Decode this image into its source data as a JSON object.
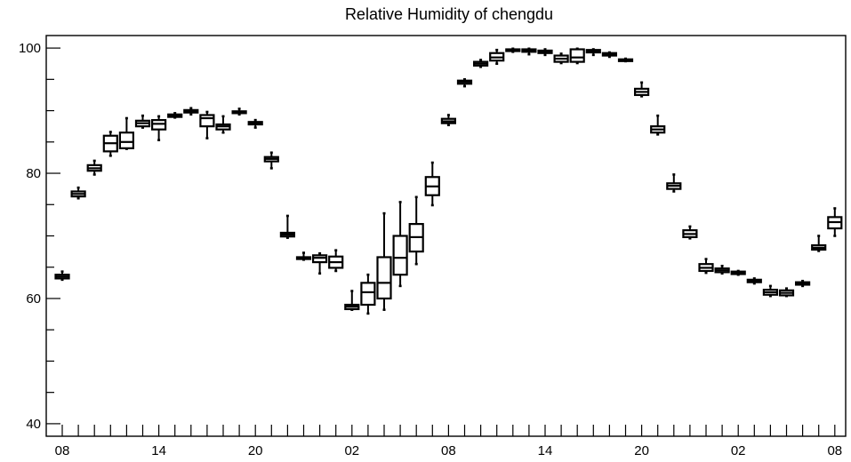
{
  "chart_data": {
    "type": "box",
    "title": "Relative Humidity of chengdu",
    "xlabel": "",
    "ylabel": "",
    "ylim": [
      38,
      102
    ],
    "grid": false,
    "y_ticks": [
      40,
      60,
      80,
      100
    ],
    "x_tick_labels": [
      "08",
      "14",
      "20",
      "02",
      "08",
      "14",
      "20",
      "02",
      "08"
    ],
    "x_label_positions": [
      0,
      6,
      12,
      18,
      24,
      30,
      36,
      42,
      48
    ],
    "series": [
      {
        "x": 0,
        "min": 63.0,
        "q1": 63.2,
        "median": 63.5,
        "q3": 63.8,
        "max": 64.3
      },
      {
        "x": 1,
        "min": 76.0,
        "q1": 76.3,
        "median": 76.7,
        "q3": 77.1,
        "max": 77.7
      },
      {
        "x": 2,
        "min": 79.8,
        "q1": 80.4,
        "median": 80.8,
        "q3": 81.3,
        "max": 82.0
      },
      {
        "x": 3,
        "min": 82.8,
        "q1": 83.5,
        "median": 84.8,
        "q3": 86.0,
        "max": 86.6
      },
      {
        "x": 4,
        "min": 83.9,
        "q1": 84.0,
        "median": 85.0,
        "q3": 86.5,
        "max": 88.8
      },
      {
        "x": 5,
        "min": 87.3,
        "q1": 87.5,
        "median": 88.0,
        "q3": 88.4,
        "max": 89.2
      },
      {
        "x": 6,
        "min": 85.3,
        "q1": 87.0,
        "median": 87.9,
        "q3": 88.5,
        "max": 89.1
      },
      {
        "x": 7,
        "min": 88.9,
        "q1": 89.0,
        "median": 89.2,
        "q3": 89.4,
        "max": 89.6
      },
      {
        "x": 8,
        "min": 89.4,
        "q1": 89.7,
        "median": 89.9,
        "q3": 90.1,
        "max": 90.4
      },
      {
        "x": 9,
        "min": 85.6,
        "q1": 87.5,
        "median": 88.8,
        "q3": 89.3,
        "max": 89.8
      },
      {
        "x": 10,
        "min": 86.5,
        "q1": 87.0,
        "median": 87.5,
        "q3": 87.8,
        "max": 89.1
      },
      {
        "x": 11,
        "min": 89.4,
        "q1": 89.6,
        "median": 89.8,
        "q3": 89.9,
        "max": 90.3
      },
      {
        "x": 12,
        "min": 87.3,
        "q1": 87.8,
        "median": 88.0,
        "q3": 88.2,
        "max": 88.5
      },
      {
        "x": 13,
        "min": 80.8,
        "q1": 81.9,
        "median": 82.3,
        "q3": 82.6,
        "max": 83.3
      },
      {
        "x": 14,
        "min": 69.7,
        "q1": 69.9,
        "median": 70.2,
        "q3": 70.5,
        "max": 73.2
      },
      {
        "x": 15,
        "min": 66.2,
        "q1": 66.3,
        "median": 66.5,
        "q3": 66.6,
        "max": 67.3
      },
      {
        "x": 16,
        "min": 64.0,
        "q1": 65.8,
        "median": 66.5,
        "q3": 66.9,
        "max": 67.2
      },
      {
        "x": 17,
        "min": 64.4,
        "q1": 64.9,
        "median": 65.8,
        "q3": 66.7,
        "max": 67.7
      },
      {
        "x": 18,
        "min": 58.2,
        "q1": 58.3,
        "median": 58.7,
        "q3": 59.0,
        "max": 61.2
      },
      {
        "x": 19,
        "min": 57.6,
        "q1": 59.0,
        "median": 61.0,
        "q3": 62.5,
        "max": 63.8
      },
      {
        "x": 20,
        "min": 58.2,
        "q1": 60.0,
        "median": 62.5,
        "q3": 66.6,
        "max": 73.6
      },
      {
        "x": 21,
        "min": 62.0,
        "q1": 63.8,
        "median": 66.5,
        "q3": 70.0,
        "max": 75.4
      },
      {
        "x": 22,
        "min": 65.5,
        "q1": 67.5,
        "median": 69.8,
        "q3": 71.9,
        "max": 76.2
      },
      {
        "x": 23,
        "min": 74.9,
        "q1": 76.5,
        "median": 77.9,
        "q3": 79.4,
        "max": 81.7
      },
      {
        "x": 24,
        "min": 87.7,
        "q1": 88.0,
        "median": 88.3,
        "q3": 88.7,
        "max": 89.3
      },
      {
        "x": 25,
        "min": 93.9,
        "q1": 94.3,
        "median": 94.6,
        "q3": 94.8,
        "max": 95.0
      },
      {
        "x": 26,
        "min": 97.0,
        "q1": 97.2,
        "median": 97.5,
        "q3": 97.8,
        "max": 98.1
      },
      {
        "x": 27,
        "min": 97.5,
        "q1": 98.0,
        "median": 98.5,
        "q3": 99.2,
        "max": 99.7
      },
      {
        "x": 28,
        "min": 99.4,
        "q1": 99.6,
        "median": 99.7,
        "q3": 99.8,
        "max": 99.9
      },
      {
        "x": 29,
        "min": 99.0,
        "q1": 99.4,
        "median": 99.6,
        "q3": 99.8,
        "max": 99.9
      },
      {
        "x": 30,
        "min": 98.9,
        "q1": 99.2,
        "median": 99.4,
        "q3": 99.6,
        "max": 99.8
      },
      {
        "x": 31,
        "min": 97.6,
        "q1": 97.8,
        "median": 98.3,
        "q3": 98.8,
        "max": 99.1
      },
      {
        "x": 32,
        "min": 97.6,
        "q1": 97.8,
        "median": 98.5,
        "q3": 99.8,
        "max": 99.9
      },
      {
        "x": 33,
        "min": 98.9,
        "q1": 99.3,
        "median": 99.5,
        "q3": 99.7,
        "max": 99.8
      },
      {
        "x": 34,
        "min": 98.6,
        "q1": 98.8,
        "median": 99.0,
        "q3": 99.2,
        "max": 99.3
      },
      {
        "x": 35,
        "min": 97.9,
        "q1": 98.0,
        "median": 98.1,
        "q3": 98.2,
        "max": 98.3
      },
      {
        "x": 36,
        "min": 92.3,
        "q1": 92.5,
        "median": 93.0,
        "q3": 93.5,
        "max": 94.5
      },
      {
        "x": 37,
        "min": 86.2,
        "q1": 86.5,
        "median": 87.0,
        "q3": 87.5,
        "max": 89.2
      },
      {
        "x": 38,
        "min": 77.1,
        "q1": 77.5,
        "median": 78.0,
        "q3": 78.4,
        "max": 79.8
      },
      {
        "x": 39,
        "min": 69.6,
        "q1": 69.8,
        "median": 70.3,
        "q3": 70.9,
        "max": 71.5
      },
      {
        "x": 40,
        "min": 64.1,
        "q1": 64.4,
        "median": 64.9,
        "q3": 65.5,
        "max": 66.3
      },
      {
        "x": 41,
        "min": 64.0,
        "q1": 64.2,
        "median": 64.5,
        "q3": 64.8,
        "max": 65.2
      },
      {
        "x": 42,
        "min": 63.8,
        "q1": 63.9,
        "median": 64.1,
        "q3": 64.3,
        "max": 64.4
      },
      {
        "x": 43,
        "min": 62.4,
        "q1": 62.6,
        "median": 62.8,
        "q3": 63.0,
        "max": 63.2
      },
      {
        "x": 44,
        "min": 60.4,
        "q1": 60.6,
        "median": 61.0,
        "q3": 61.4,
        "max": 62.0
      },
      {
        "x": 45,
        "min": 60.4,
        "q1": 60.5,
        "median": 60.9,
        "q3": 61.3,
        "max": 61.6
      },
      {
        "x": 46,
        "min": 62.0,
        "q1": 62.2,
        "median": 62.4,
        "q3": 62.6,
        "max": 62.8
      },
      {
        "x": 47,
        "min": 67.6,
        "q1": 67.8,
        "median": 68.1,
        "q3": 68.5,
        "max": 70.0
      },
      {
        "x": 48,
        "min": 70.0,
        "q1": 71.2,
        "median": 72.2,
        "q3": 73.0,
        "max": 74.4
      }
    ]
  }
}
